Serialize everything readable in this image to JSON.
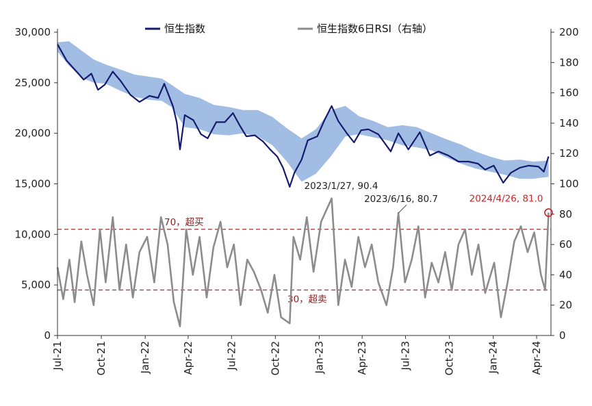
{
  "chart_data": {
    "type": "line",
    "x_tick_labels": [
      "Jul-21",
      "Oct-21",
      "Jan-22",
      "Apr-22",
      "Jul-22",
      "Oct-22",
      "Jan-23",
      "Apr-23",
      "Jul-23",
      "Oct-23",
      "Jan-24",
      "Apr-24"
    ],
    "x_range": [
      "2021-07-01",
      "2024-05-01"
    ],
    "y_left": {
      "min": 0,
      "max": 30000,
      "ticks": [
        "0",
        "5,000",
        "10,000",
        "15,000",
        "20,000",
        "25,000",
        "30,000"
      ]
    },
    "y_right": {
      "min": 0,
      "max": 200,
      "ticks": [
        "0",
        "20",
        "40",
        "60",
        "80",
        "100",
        "120",
        "140",
        "160",
        "180",
        "200"
      ]
    },
    "legend": [
      {
        "label": "恒生指数",
        "color": "#141b6e"
      },
      {
        "label": "恒生指数6日RSI（右轴）",
        "color": "#8c8c8c"
      }
    ],
    "series": [
      {
        "name": "恒生指数",
        "axis": "left",
        "color": "#141b6e",
        "points": [
          [
            "2021-07-01",
            28800
          ],
          [
            "2021-07-20",
            27200
          ],
          [
            "2021-08-10",
            26100
          ],
          [
            "2021-08-25",
            25300
          ],
          [
            "2021-09-10",
            25900
          ],
          [
            "2021-09-24",
            24300
          ],
          [
            "2021-10-08",
            24800
          ],
          [
            "2021-10-25",
            26100
          ],
          [
            "2021-11-10",
            25200
          ],
          [
            "2021-12-01",
            23800
          ],
          [
            "2021-12-20",
            23100
          ],
          [
            "2022-01-10",
            23700
          ],
          [
            "2022-01-28",
            23500
          ],
          [
            "2022-02-10",
            24900
          ],
          [
            "2022-02-28",
            22700
          ],
          [
            "2022-03-08",
            21100
          ],
          [
            "2022-03-15",
            18400
          ],
          [
            "2022-03-25",
            21800
          ],
          [
            "2022-04-12",
            21300
          ],
          [
            "2022-04-28",
            19900
          ],
          [
            "2022-05-12",
            19500
          ],
          [
            "2022-05-30",
            21100
          ],
          [
            "2022-06-17",
            21100
          ],
          [
            "2022-07-04",
            22000
          ],
          [
            "2022-07-18",
            20800
          ],
          [
            "2022-08-01",
            19700
          ],
          [
            "2022-08-19",
            19800
          ],
          [
            "2022-09-05",
            19200
          ],
          [
            "2022-09-20",
            18400
          ],
          [
            "2022-10-05",
            17700
          ],
          [
            "2022-10-17",
            16600
          ],
          [
            "2022-10-31",
            14700
          ],
          [
            "2022-11-10",
            16100
          ],
          [
            "2022-11-25",
            17400
          ],
          [
            "2022-12-08",
            19300
          ],
          [
            "2022-12-28",
            19700
          ],
          [
            "2023-01-12",
            21300
          ],
          [
            "2023-01-27",
            22700
          ],
          [
            "2023-02-10",
            21200
          ],
          [
            "2023-02-28",
            20000
          ],
          [
            "2023-03-15",
            19100
          ],
          [
            "2023-03-30",
            20300
          ],
          [
            "2023-04-14",
            20400
          ],
          [
            "2023-05-05",
            19900
          ],
          [
            "2023-05-31",
            18200
          ],
          [
            "2023-06-16",
            20000
          ],
          [
            "2023-07-07",
            18400
          ],
          [
            "2023-07-31",
            20100
          ],
          [
            "2023-08-21",
            17800
          ],
          [
            "2023-09-08",
            18200
          ],
          [
            "2023-09-29",
            17800
          ],
          [
            "2023-10-20",
            17200
          ],
          [
            "2023-11-10",
            17200
          ],
          [
            "2023-11-30",
            17000
          ],
          [
            "2023-12-15",
            16400
          ],
          [
            "2024-01-02",
            16800
          ],
          [
            "2024-01-22",
            15100
          ],
          [
            "2024-02-07",
            16100
          ],
          [
            "2024-02-26",
            16600
          ],
          [
            "2024-03-15",
            16800
          ],
          [
            "2024-04-05",
            16700
          ],
          [
            "2024-04-16",
            16200
          ],
          [
            "2024-04-26",
            17700
          ]
        ]
      },
      {
        "name": "恒生指数6日RSI（右轴）",
        "axis": "right",
        "color": "#8c8c8c",
        "points": [
          [
            "2021-07-01",
            45
          ],
          [
            "2021-07-13",
            24
          ],
          [
            "2021-07-26",
            50
          ],
          [
            "2021-08-06",
            22
          ],
          [
            "2021-08-20",
            62
          ],
          [
            "2021-09-01",
            40
          ],
          [
            "2021-09-15",
            20
          ],
          [
            "2021-09-28",
            70
          ],
          [
            "2021-10-10",
            35
          ],
          [
            "2021-10-25",
            78
          ],
          [
            "2021-11-08",
            30
          ],
          [
            "2021-11-22",
            60
          ],
          [
            "2021-12-06",
            25
          ],
          [
            "2021-12-20",
            55
          ],
          [
            "2022-01-05",
            65
          ],
          [
            "2022-01-20",
            35
          ],
          [
            "2022-02-03",
            78
          ],
          [
            "2022-02-17",
            60
          ],
          [
            "2022-03-02",
            22
          ],
          [
            "2022-03-15",
            6
          ],
          [
            "2022-03-28",
            70
          ],
          [
            "2022-04-11",
            40
          ],
          [
            "2022-04-25",
            65
          ],
          [
            "2022-05-10",
            25
          ],
          [
            "2022-05-24",
            58
          ],
          [
            "2022-06-08",
            75
          ],
          [
            "2022-06-22",
            45
          ],
          [
            "2022-07-06",
            60
          ],
          [
            "2022-07-20",
            20
          ],
          [
            "2022-08-03",
            50
          ],
          [
            "2022-08-17",
            42
          ],
          [
            "2022-09-01",
            30
          ],
          [
            "2022-09-15",
            15
          ],
          [
            "2022-09-29",
            40
          ],
          [
            "2022-10-13",
            12
          ],
          [
            "2022-10-31",
            8
          ],
          [
            "2022-11-08",
            65
          ],
          [
            "2022-11-22",
            50
          ],
          [
            "2022-12-06",
            78
          ],
          [
            "2022-12-20",
            42
          ],
          [
            "2023-01-05",
            75
          ],
          [
            "2023-01-27",
            90.4
          ],
          [
            "2023-02-10",
            20
          ],
          [
            "2023-02-24",
            50
          ],
          [
            "2023-03-10",
            32
          ],
          [
            "2023-03-24",
            65
          ],
          [
            "2023-04-07",
            45
          ],
          [
            "2023-04-21",
            60
          ],
          [
            "2023-05-05",
            35
          ],
          [
            "2023-05-22",
            20
          ],
          [
            "2023-06-05",
            45
          ],
          [
            "2023-06-16",
            80.7
          ],
          [
            "2023-06-30",
            35
          ],
          [
            "2023-07-14",
            50
          ],
          [
            "2023-07-28",
            72
          ],
          [
            "2023-08-11",
            25
          ],
          [
            "2023-08-25",
            48
          ],
          [
            "2023-09-08",
            35
          ],
          [
            "2023-09-22",
            55
          ],
          [
            "2023-10-06",
            30
          ],
          [
            "2023-10-20",
            60
          ],
          [
            "2023-11-03",
            70
          ],
          [
            "2023-11-17",
            40
          ],
          [
            "2023-12-01",
            60
          ],
          [
            "2023-12-15",
            28
          ],
          [
            "2024-01-03",
            48
          ],
          [
            "2024-01-17",
            12
          ],
          [
            "2024-01-31",
            35
          ],
          [
            "2024-02-14",
            62
          ],
          [
            "2024-02-28",
            72
          ],
          [
            "2024-03-13",
            55
          ],
          [
            "2024-03-27",
            68
          ],
          [
            "2024-04-10",
            40
          ],
          [
            "2024-04-19",
            30
          ],
          [
            "2024-04-26",
            81.0
          ]
        ]
      }
    ],
    "band": {
      "axis": "left",
      "color": "#9db9e1",
      "upper": [
        [
          "2021-07-01",
          29000
        ],
        [
          "2021-07-25",
          29100
        ],
        [
          "2021-08-20",
          28200
        ],
        [
          "2021-09-15",
          27300
        ],
        [
          "2021-10-10",
          26800
        ],
        [
          "2021-11-10",
          26300
        ],
        [
          "2021-12-10",
          25800
        ],
        [
          "2022-01-10",
          25600
        ],
        [
          "2022-02-05",
          25400
        ],
        [
          "2022-02-25",
          24800
        ],
        [
          "2022-03-25",
          23900
        ],
        [
          "2022-04-25",
          23500
        ],
        [
          "2022-05-25",
          22800
        ],
        [
          "2022-06-25",
          22600
        ],
        [
          "2022-07-25",
          22300
        ],
        [
          "2022-08-25",
          22300
        ],
        [
          "2022-09-25",
          21600
        ],
        [
          "2022-10-25",
          20500
        ],
        [
          "2022-11-25",
          19500
        ],
        [
          "2022-12-25",
          20400
        ],
        [
          "2023-01-25",
          22300
        ],
        [
          "2023-02-25",
          22700
        ],
        [
          "2023-03-25",
          21700
        ],
        [
          "2023-04-25",
          21200
        ],
        [
          "2023-05-25",
          20600
        ],
        [
          "2023-06-25",
          20800
        ],
        [
          "2023-07-25",
          20600
        ],
        [
          "2023-08-25",
          20000
        ],
        [
          "2023-09-25",
          19400
        ],
        [
          "2023-10-25",
          18900
        ],
        [
          "2023-11-25",
          18200
        ],
        [
          "2023-12-25",
          17700
        ],
        [
          "2024-01-25",
          17300
        ],
        [
          "2024-02-25",
          17400
        ],
        [
          "2024-03-25",
          17200
        ],
        [
          "2024-04-26",
          17300
        ]
      ],
      "lower": [
        [
          "2021-07-01",
          28100
        ],
        [
          "2021-07-25",
          26700
        ],
        [
          "2021-08-20",
          25500
        ],
        [
          "2021-09-15",
          25000
        ],
        [
          "2021-10-10",
          24900
        ],
        [
          "2021-11-10",
          24200
        ],
        [
          "2021-12-10",
          23600
        ],
        [
          "2022-01-10",
          23300
        ],
        [
          "2022-02-05",
          23200
        ],
        [
          "2022-02-25",
          22600
        ],
        [
          "2022-03-25",
          20600
        ],
        [
          "2022-04-25",
          20400
        ],
        [
          "2022-05-25",
          19900
        ],
        [
          "2022-06-25",
          19800
        ],
        [
          "2022-07-25",
          20000
        ],
        [
          "2022-08-25",
          19700
        ],
        [
          "2022-09-25",
          18800
        ],
        [
          "2022-10-25",
          17200
        ],
        [
          "2022-11-25",
          15200
        ],
        [
          "2022-12-25",
          16000
        ],
        [
          "2023-01-25",
          17700
        ],
        [
          "2023-02-25",
          19700
        ],
        [
          "2023-03-25",
          19900
        ],
        [
          "2023-04-25",
          19600
        ],
        [
          "2023-05-25",
          19300
        ],
        [
          "2023-06-25",
          18800
        ],
        [
          "2023-07-25",
          18600
        ],
        [
          "2023-08-25",
          18300
        ],
        [
          "2023-09-25",
          17600
        ],
        [
          "2023-10-25",
          17000
        ],
        [
          "2023-11-25",
          16500
        ],
        [
          "2023-12-25",
          16200
        ],
        [
          "2024-01-25",
          15900
        ],
        [
          "2024-02-25",
          15500
        ],
        [
          "2024-03-25",
          15500
        ],
        [
          "2024-04-26",
          15700
        ]
      ]
    },
    "reference_lines": [
      {
        "axis": "right",
        "value": 70,
        "label": "70，超买",
        "color": "#b03a3a"
      },
      {
        "axis": "right",
        "value": 30,
        "label": "30，超卖",
        "color": "#b03a3a"
      }
    ],
    "annotations": [
      {
        "text": "2023/1/27, 90.4",
        "x": "2023-01-27",
        "y": 90.4,
        "color": "#222222"
      },
      {
        "text": "2023/6/16, 80.7",
        "x": "2023-06-16",
        "y": 80.7,
        "color": "#222222"
      },
      {
        "text": "2024/4/26, 81.0",
        "x": "2024-04-26",
        "y": 81.0,
        "color": "#d62020"
      }
    ],
    "legend_position": "top",
    "grid": false
  }
}
